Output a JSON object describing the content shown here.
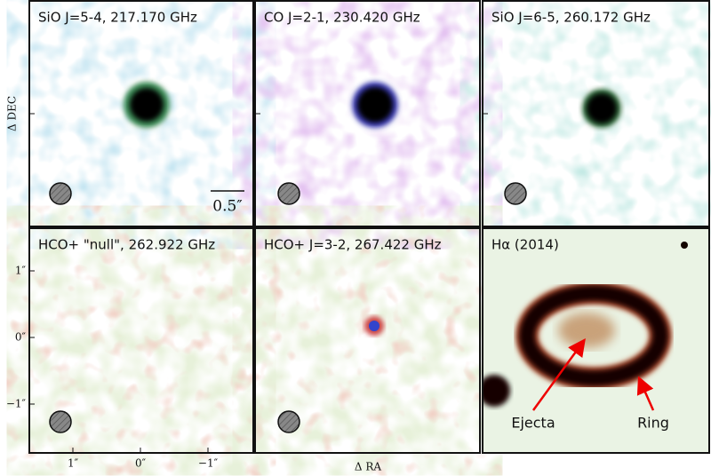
{
  "panels": [
    {
      "title": "SiO J=5-4, 217.170 GHz"
    },
    {
      "title": "CO J=2-1, 230.420 GHz"
    },
    {
      "title": "SiO J=6-5, 260.172 GHz"
    },
    {
      "title": "HCO+ \"null\", 262.922 GHz"
    },
    {
      "title": "HCO+ J=3-2, 267.422 GHz"
    },
    {
      "title": "Hα (2014)"
    }
  ],
  "axes": {
    "y_label": "Δ DEC",
    "x_label": "Δ RA",
    "y_ticks": [
      "1″",
      "0″",
      "−1″"
    ],
    "x_ticks": [
      "1″",
      "0″",
      "−1″"
    ]
  },
  "scale_bar": "0.5″",
  "annotations": [
    "Ejecta",
    "Ring"
  ]
}
